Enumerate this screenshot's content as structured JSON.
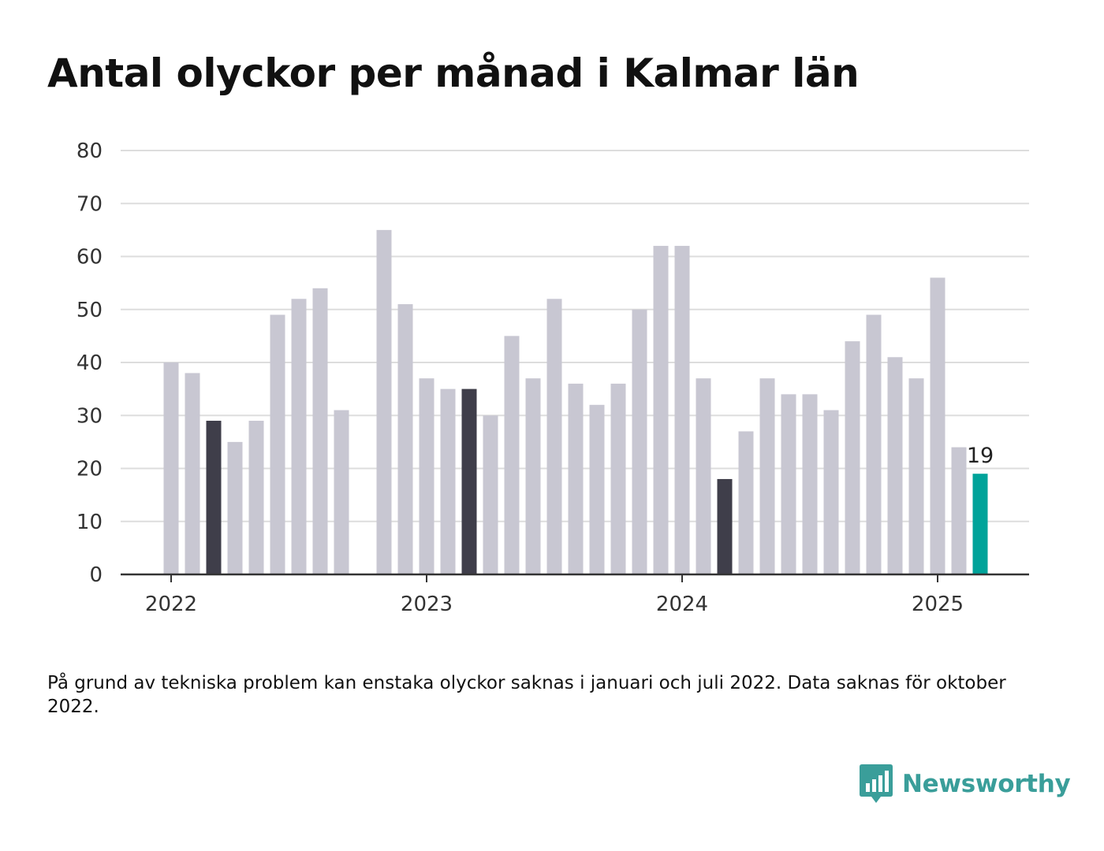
{
  "title": "Antal olyckor per månad i Kalmar län",
  "note": "På grund av tekniska problem kan enstaka olyckor saknas i januari och juli 2022. Data saknas för oktober 2022.",
  "brand": {
    "name": "Newsworthy",
    "logo_icon": "bar-chart-speech-bubble-icon"
  },
  "colors": {
    "default_bar": "#c8c7d2",
    "highlight_bar": "#3f3e4a",
    "current_bar": "#00a39a",
    "grid": "#dddddd",
    "axis": "#333333"
  },
  "chart_data": {
    "type": "bar",
    "title": "Antal olyckor per månad i Kalmar län",
    "xlabel": "",
    "ylabel": "",
    "ylim": [
      0,
      80
    ],
    "yticks": [
      0,
      10,
      20,
      30,
      40,
      50,
      60,
      70,
      80
    ],
    "xticks": [
      {
        "label": "2022",
        "index": 0
      },
      {
        "label": "2023",
        "index": 12
      },
      {
        "label": "2024",
        "index": 24
      },
      {
        "label": "2025",
        "index": 36
      }
    ],
    "grid": true,
    "categories": [
      "2022-01",
      "2022-02",
      "2022-03",
      "2022-04",
      "2022-05",
      "2022-06",
      "2022-07",
      "2022-08",
      "2022-09",
      "2022-10",
      "2022-11",
      "2022-12",
      "2023-01",
      "2023-02",
      "2023-03",
      "2023-04",
      "2023-05",
      "2023-06",
      "2023-07",
      "2023-08",
      "2023-09",
      "2023-10",
      "2023-11",
      "2023-12",
      "2024-01",
      "2024-02",
      "2024-03",
      "2024-04",
      "2024-05",
      "2024-06",
      "2024-07",
      "2024-08",
      "2024-09",
      "2024-10",
      "2024-11",
      "2024-12",
      "2025-01",
      "2025-02",
      "2025-03"
    ],
    "values": [
      40,
      38,
      29,
      25,
      29,
      49,
      52,
      54,
      31,
      null,
      65,
      51,
      37,
      35,
      35,
      30,
      45,
      37,
      52,
      36,
      32,
      36,
      50,
      62,
      62,
      37,
      18,
      27,
      37,
      34,
      34,
      31,
      44,
      49,
      41,
      37,
      56,
      24,
      19
    ],
    "highlight_indices": [
      2,
      14,
      26
    ],
    "current_index": 38,
    "data_labels": [
      {
        "index": 38,
        "text": "19"
      }
    ]
  }
}
